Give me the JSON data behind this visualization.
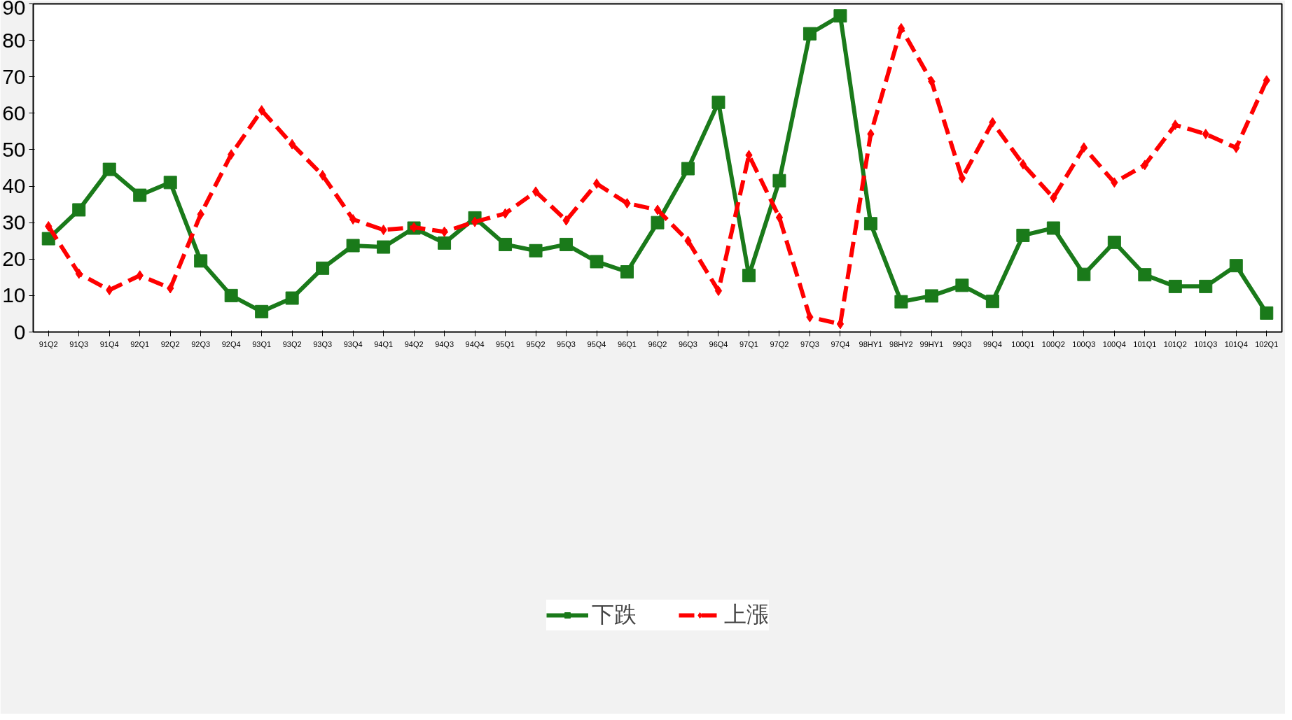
{
  "chart_data": {
    "type": "line",
    "categories": [
      "91Q2",
      "91Q3",
      "91Q4",
      "92Q1",
      "92Q2",
      "92Q3",
      "92Q4",
      "93Q1",
      "93Q2",
      "93Q3",
      "93Q4",
      "94Q1",
      "94Q2",
      "94Q3",
      "94Q4",
      "95Q1",
      "95Q2",
      "95Q3",
      "95Q4",
      "96Q1",
      "96Q2",
      "96Q3",
      "96Q4",
      "97Q1",
      "97Q2",
      "97Q3",
      "97Q4",
      "98HY1",
      "98HY2",
      "99HY1",
      "99Q3",
      "99Q4",
      "100Q1",
      "100Q2",
      "100Q3",
      "100Q4",
      "101Q1",
      "101Q2",
      "101Q3",
      "101Q4",
      "102Q1"
    ],
    "series": [
      {
        "name": "下跌",
        "color": "#1a7a1a",
        "marker": "square",
        "line_style": "solid",
        "values": [
          25.6,
          33.5,
          44.6,
          37.5,
          41,
          19.5,
          10,
          5.6,
          9.3,
          17.5,
          23.7,
          23.3,
          28.5,
          24.4,
          31.3,
          24,
          22.3,
          24,
          19.3,
          16.5,
          30,
          44.8,
          63,
          15.5,
          41.5,
          81.8,
          86.7,
          29.7,
          8.3,
          9.9,
          12.8,
          8.4,
          26.5,
          28.5,
          15.8,
          24.6,
          15.7,
          12.5,
          12.5,
          18.2,
          5.2
        ]
      },
      {
        "name": "上漲",
        "color": "#ff0000",
        "marker": "diamond",
        "line_style": "dashed",
        "values": [
          29,
          16,
          11.5,
          15.5,
          12,
          32.3,
          48.7,
          60.8,
          51.5,
          43,
          30.9,
          28,
          28.7,
          27.5,
          30.2,
          32.5,
          38.5,
          30.6,
          40.7,
          35.3,
          33.5,
          25,
          11.3,
          48.5,
          31.4,
          4.1,
          2.2,
          54.3,
          83.3,
          68.7,
          42.2,
          57.5,
          46,
          36.8,
          50.6,
          41,
          45.8,
          56.8,
          54.3,
          50.5,
          69
        ]
      }
    ],
    "ylim": [
      0,
      90
    ],
    "yticks": [
      0,
      10,
      20,
      30,
      40,
      50,
      60,
      70,
      80,
      90
    ],
    "grid": false,
    "legend": "bottom"
  }
}
